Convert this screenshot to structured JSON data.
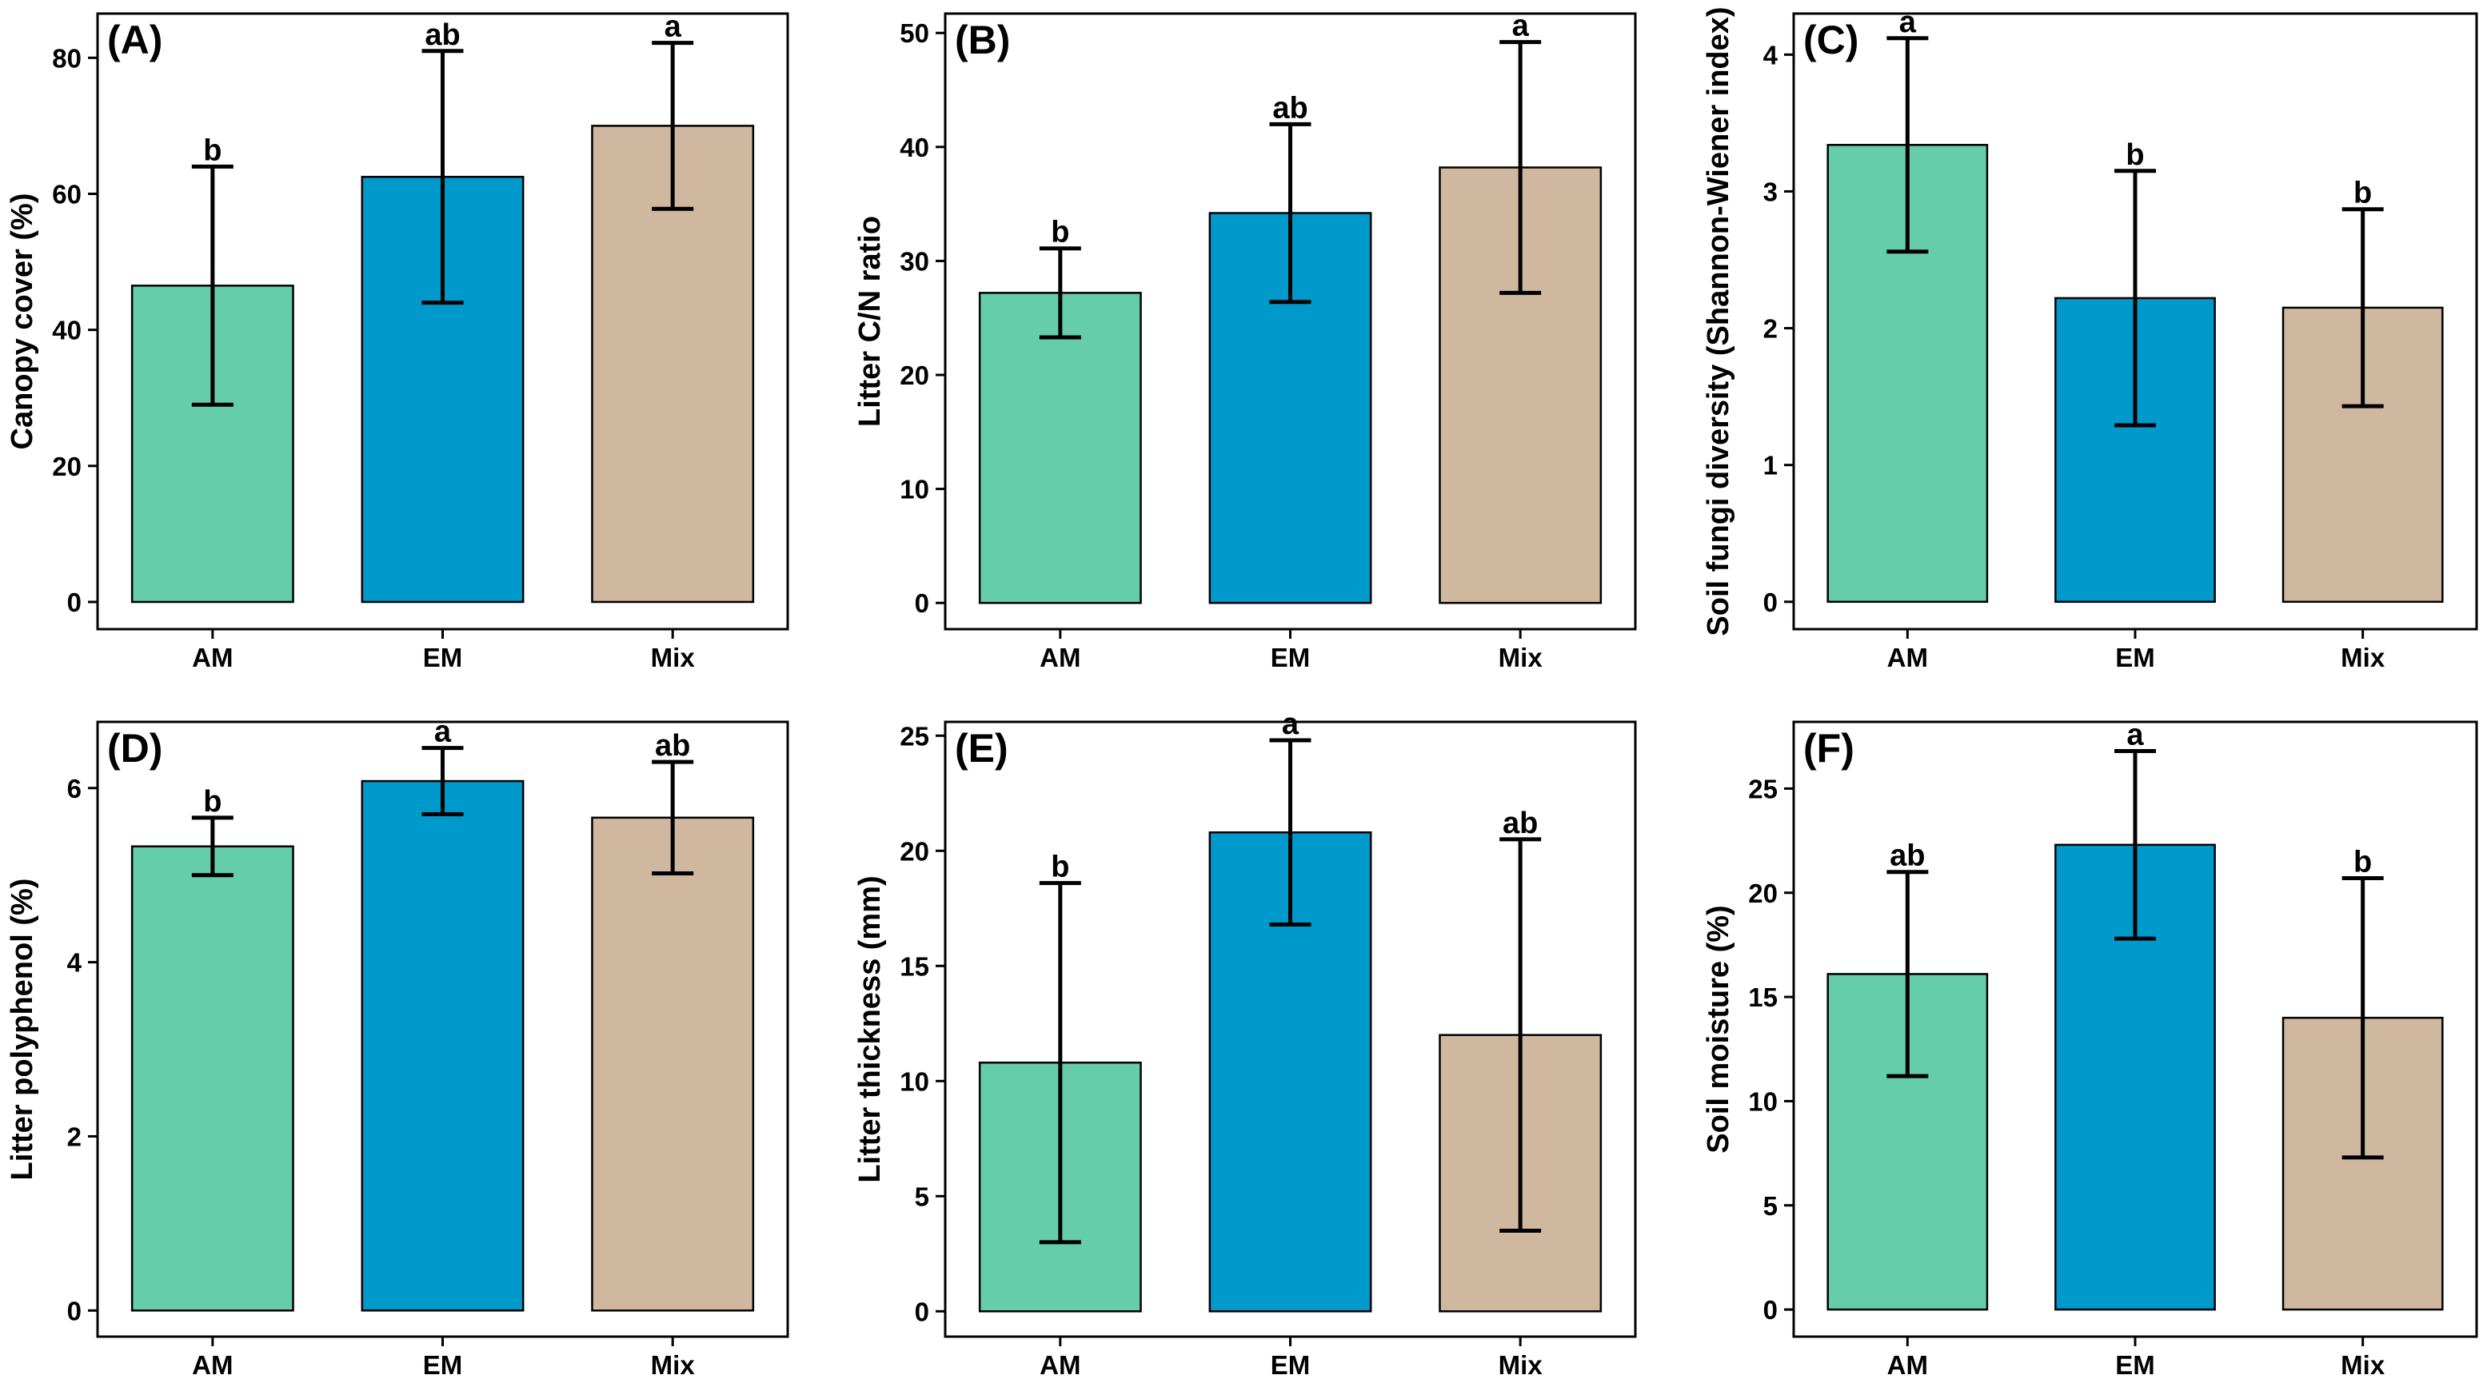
{
  "chart_data": [
    {
      "type": "bar",
      "panel": "(A)",
      "ylabel": "Canopy cover (%)",
      "categories": [
        "AM",
        "EM",
        "Mix"
      ],
      "values": [
        46.5,
        62.5,
        70
      ],
      "errors": [
        17.5,
        18.5,
        12.2
      ],
      "significance": [
        "b",
        "ab",
        "a"
      ],
      "ylim": [
        -4,
        86.5
      ],
      "yticks": [
        0,
        20,
        40,
        60,
        80
      ],
      "colors": [
        "#66CDAA",
        "#0099CC",
        "#CFB89F"
      ]
    },
    {
      "type": "bar",
      "panel": "(B)",
      "ylabel": "Litter C/N ratio",
      "categories": [
        "AM",
        "EM",
        "Mix"
      ],
      "values": [
        27.2,
        34.2,
        38.2
      ],
      "errors": [
        3.9,
        7.8,
        11
      ],
      "significance": [
        "b",
        "ab",
        "a"
      ],
      "ylim": [
        -2.3,
        51.7
      ],
      "yticks": [
        0,
        10,
        20,
        30,
        40,
        50
      ],
      "colors": [
        "#66CDAA",
        "#0099CC",
        "#CFB89F"
      ]
    },
    {
      "type": "bar",
      "panel": "(C)",
      "ylabel": "Soil fungi diversity (Shannon-Wiener index)",
      "categories": [
        "AM",
        "EM",
        "Mix"
      ],
      "values": [
        3.34,
        2.22,
        2.15
      ],
      "errors": [
        0.78,
        0.93,
        0.72
      ],
      "significance": [
        "a",
        "b",
        "b"
      ],
      "ylim": [
        -0.2,
        4.3
      ],
      "yticks": [
        0,
        1,
        2,
        3,
        4
      ],
      "colors": [
        "#66CDAA",
        "#0099CC",
        "#CFB89F"
      ]
    },
    {
      "type": "bar",
      "panel": "(D)",
      "ylabel": "Litter polyphenol (%)",
      "categories": [
        "AM",
        "EM",
        "Mix"
      ],
      "values": [
        5.33,
        6.08,
        5.66
      ],
      "errors": [
        0.33,
        0.38,
        0.64
      ],
      "significance": [
        "b",
        "a",
        "ab"
      ],
      "ylim": [
        -0.3,
        6.76
      ],
      "yticks": [
        0,
        2,
        4,
        6
      ],
      "colors": [
        "#66CDAA",
        "#0099CC",
        "#CFB89F"
      ]
    },
    {
      "type": "bar",
      "panel": "(E)",
      "ylabel": "Litter thickness (mm)",
      "categories": [
        "AM",
        "EM",
        "Mix"
      ],
      "values": [
        10.8,
        20.8,
        12
      ],
      "errors": [
        7.8,
        4,
        8.5
      ],
      "significance": [
        "b",
        "a",
        "ab"
      ],
      "ylim": [
        -1.1,
        25.6
      ],
      "yticks": [
        0,
        5,
        10,
        15,
        20,
        25
      ],
      "colors": [
        "#66CDAA",
        "#0099CC",
        "#CFB89F"
      ]
    },
    {
      "type": "bar",
      "panel": "(F)",
      "ylabel": "Soil moisture (%)",
      "categories": [
        "AM",
        "EM",
        "Mix"
      ],
      "values": [
        16.1,
        22.3,
        14
      ],
      "errors": [
        4.9,
        4.5,
        6.7
      ],
      "significance": [
        "ab",
        "a",
        "b"
      ],
      "ylim": [
        -1.3,
        28.2
      ],
      "yticks": [
        0,
        5,
        10,
        15,
        20,
        25
      ],
      "colors": [
        "#66CDAA",
        "#0099CC",
        "#CFB89F"
      ]
    }
  ]
}
